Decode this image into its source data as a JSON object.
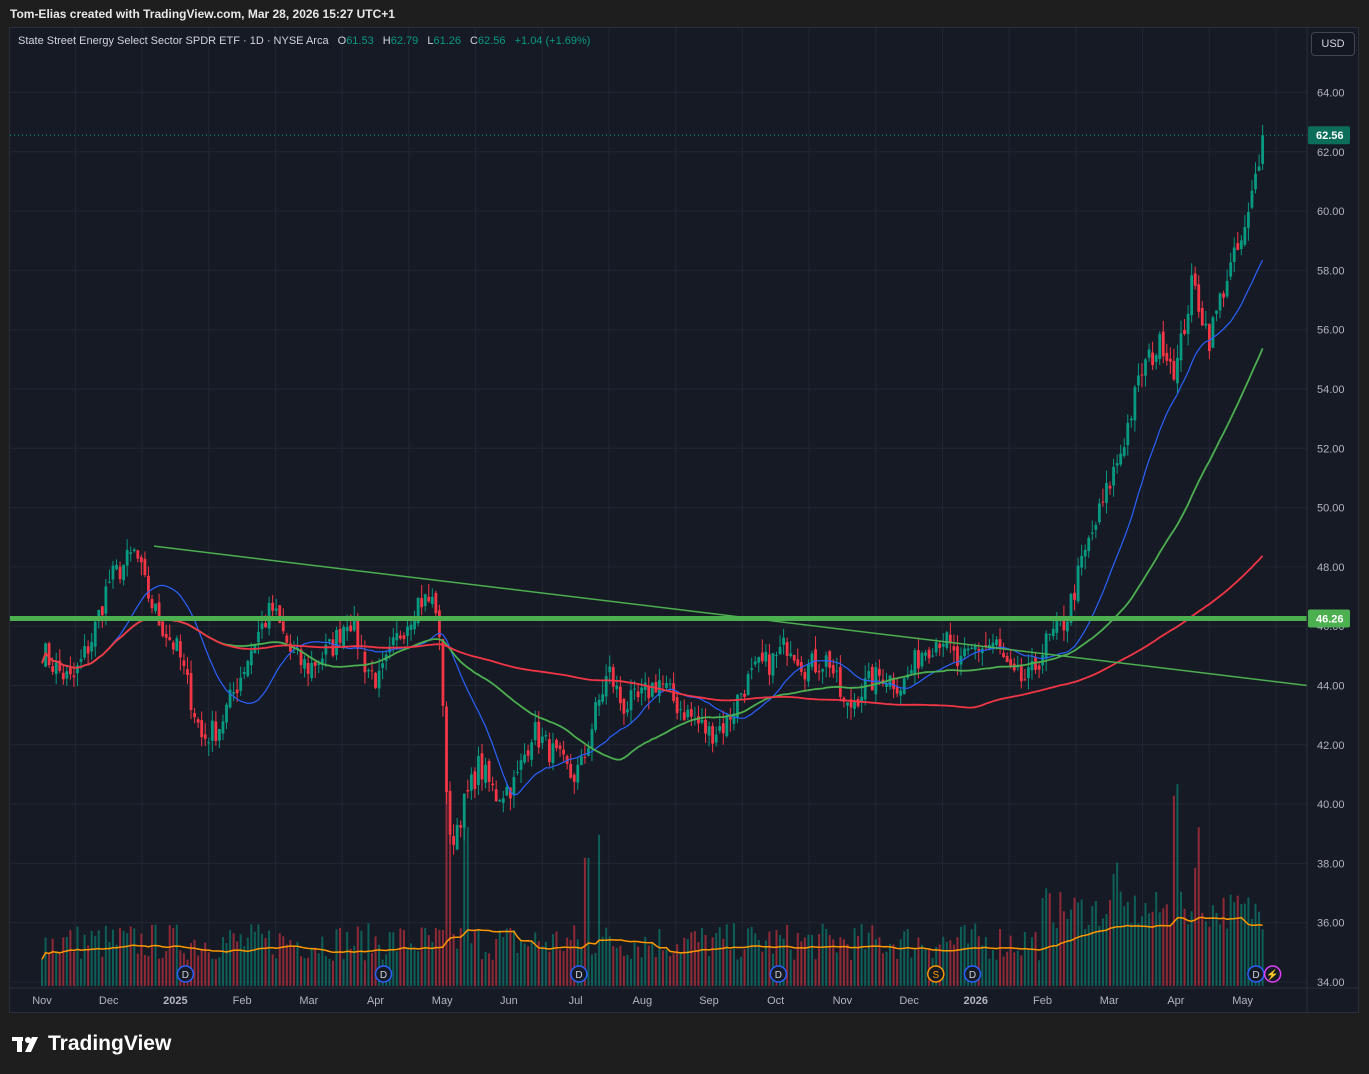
{
  "header": {
    "attribution": "Tom-Elias created with TradingView.com, Mar 28, 2026 15:27 UTC+1"
  },
  "legend": {
    "symbol": "State Street Energy Select Sector SPDR ETF · 1D · NYSE Arca",
    "o_label": "O",
    "o": "61.53",
    "h_label": "H",
    "h": "62.79",
    "l_label": "L",
    "l": "61.26",
    "c_label": "C",
    "c": "62.56",
    "change": "+1.04 (+1.69%)"
  },
  "currency_button": "USD",
  "footer": {
    "brand": "TradingView"
  },
  "colors": {
    "up": "#089981",
    "down": "#f23645",
    "ma_fast": "#2962ff",
    "ma_mid": "#4caf50",
    "ma_slow": "#f23645",
    "vol_ma": "#ff9800",
    "level": "#4caf50"
  },
  "chart_data": {
    "type": "candlestick",
    "title": "State Street Energy Select Sector SPDR ETF · 1D · NYSE Arca",
    "ylim": [
      34,
      65
    ],
    "y_ticks": [
      "64.00",
      "62.00",
      "60.00",
      "58.00",
      "56.00",
      "54.00",
      "52.00",
      "50.00",
      "48.00",
      "46.00",
      "44.00",
      "42.00",
      "40.00",
      "38.00",
      "36.00",
      "34.00"
    ],
    "x_labels": [
      "Nov",
      "Dec",
      "2025",
      "Feb",
      "Mar",
      "Apr",
      "May",
      "Jun",
      "Jul",
      "Aug",
      "Sep",
      "Oct",
      "Nov",
      "Dec",
      "2026",
      "Feb",
      "Mar",
      "Apr",
      "May"
    ],
    "x_range_months": [
      0,
      19.3
    ],
    "last_price": {
      "value": 62.56,
      "label": "62.56"
    },
    "level_line": {
      "value": 46.26,
      "label": "46.26"
    },
    "trendline": {
      "from": [
        1.68,
        48.7
      ],
      "to": [
        19.3,
        44.0
      ]
    },
    "price_path": [
      [
        0,
        45.2
      ],
      [
        0.2,
        44.6
      ],
      [
        0.45,
        44.1
      ],
      [
        0.75,
        45.6
      ],
      [
        1.0,
        47.5
      ],
      [
        1.4,
        48.5
      ],
      [
        1.55,
        47.3
      ],
      [
        1.75,
        46.2
      ],
      [
        2.05,
        45.1
      ],
      [
        2.4,
        42.2
      ],
      [
        2.65,
        42.6
      ],
      [
        2.9,
        43.9
      ],
      [
        3.2,
        45.6
      ],
      [
        3.45,
        46.6
      ],
      [
        3.75,
        45.0
      ],
      [
        4.0,
        44.6
      ],
      [
        4.35,
        45.3
      ],
      [
        4.6,
        46.4
      ],
      [
        4.85,
        44.7
      ],
      [
        5.05,
        44.1
      ],
      [
        5.35,
        45.7
      ],
      [
        5.65,
        46.9
      ],
      [
        5.9,
        46.8
      ],
      [
        6.0,
        44.2
      ],
      [
        6.1,
        38.5
      ],
      [
        6.3,
        39.8
      ],
      [
        6.55,
        41.3
      ],
      [
        6.8,
        40.3
      ],
      [
        7.1,
        40.7
      ],
      [
        7.35,
        42.5
      ],
      [
        7.7,
        41.6
      ],
      [
        7.95,
        40.9
      ],
      [
        8.1,
        41.3
      ],
      [
        8.3,
        43.1
      ],
      [
        8.5,
        44.5
      ],
      [
        8.7,
        43.3
      ],
      [
        8.95,
        43.5
      ],
      [
        9.25,
        44.2
      ],
      [
        9.5,
        43.4
      ],
      [
        9.75,
        42.9
      ],
      [
        10.0,
        42.4
      ],
      [
        10.25,
        42.7
      ],
      [
        10.5,
        43.9
      ],
      [
        10.75,
        44.6
      ],
      [
        11.0,
        44.9
      ],
      [
        11.2,
        45.5
      ],
      [
        11.45,
        44.6
      ],
      [
        11.8,
        44.9
      ],
      [
        12.05,
        43.1
      ],
      [
        12.3,
        43.9
      ],
      [
        12.6,
        44.4
      ],
      [
        12.9,
        44.0
      ],
      [
        13.2,
        45.2
      ],
      [
        13.5,
        45.7
      ],
      [
        13.75,
        44.6
      ],
      [
        14.0,
        45.3
      ],
      [
        14.3,
        45.4
      ],
      [
        14.55,
        44.2
      ],
      [
        14.8,
        44.2
      ],
      [
        15.05,
        45.4
      ],
      [
        15.35,
        46.2
      ],
      [
        15.6,
        48.2
      ],
      [
        15.9,
        50.1
      ],
      [
        16.2,
        52.1
      ],
      [
        16.5,
        54.7
      ],
      [
        16.8,
        55.6
      ],
      [
        17.0,
        54.6
      ],
      [
        17.25,
        57.6
      ],
      [
        17.5,
        55.7
      ],
      [
        17.75,
        57.7
      ],
      [
        18.05,
        59.3
      ],
      [
        18.3,
        62.56
      ]
    ],
    "volume": {
      "ylim_note": "separate pane, bottom",
      "spikes_month_values": [
        [
          6.1,
          1.0
        ],
        [
          6.35,
          0.8
        ],
        [
          8.15,
          0.7
        ],
        [
          8.35,
          0.9
        ],
        [
          15.1,
          0.5
        ],
        [
          16.1,
          0.6
        ],
        [
          17.0,
          1.2
        ],
        [
          17.3,
          0.8
        ]
      ]
    },
    "events": [
      {
        "label": "D",
        "x": 2.15
      },
      {
        "label": "D",
        "x": 5.12
      },
      {
        "label": "D",
        "x": 8.05
      },
      {
        "label": "D",
        "x": 11.04
      },
      {
        "label": "S",
        "x": 13.4
      },
      {
        "label": "D",
        "x": 13.95
      },
      {
        "label": "D",
        "x": 18.2
      },
      {
        "label": "⚡",
        "x": 18.45
      }
    ],
    "series": [
      {
        "name": "MA fast",
        "color": "#2962ff"
      },
      {
        "name": "MA mid",
        "color": "#4caf50"
      },
      {
        "name": "MA slow",
        "color": "#f23645"
      },
      {
        "name": "Volume MA",
        "color": "#ff9800"
      }
    ]
  }
}
